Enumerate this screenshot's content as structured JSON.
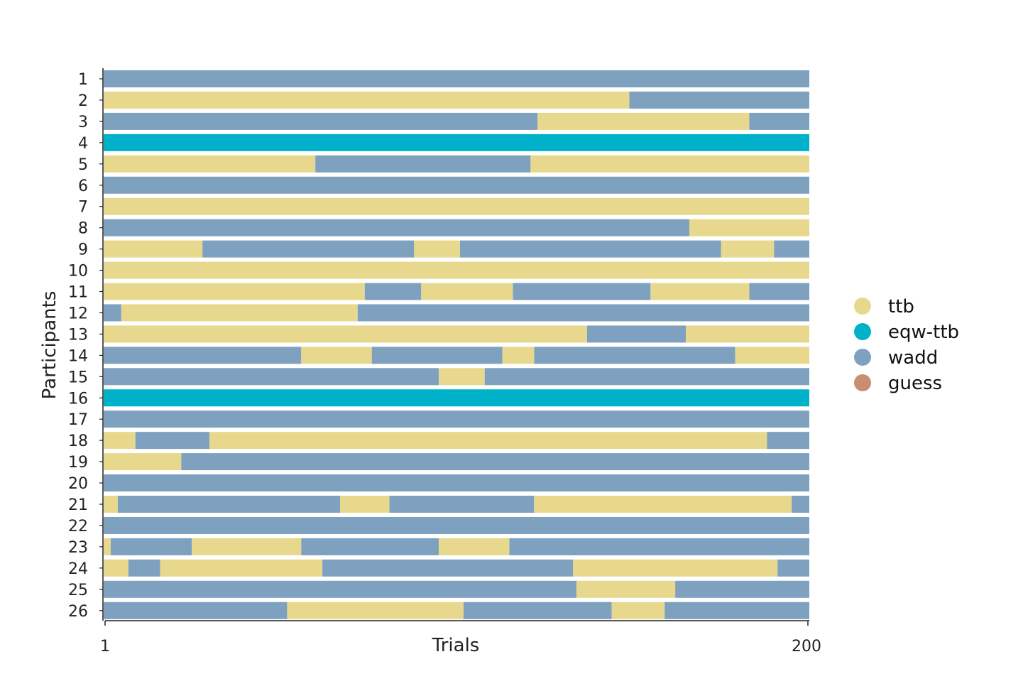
{
  "chart_data": {
    "type": "heatmap",
    "xlabel": "Trials",
    "ylabel": "Participants",
    "xticks": [
      "1",
      "200"
    ],
    "x_range": [
      1,
      200
    ],
    "legend": {
      "placement": "right",
      "entries": [
        {
          "key": "ttb",
          "label": "ttb",
          "color": "#E8D88E"
        },
        {
          "key": "eqw-ttb",
          "label": "eqw-ttb",
          "color": "#00B2C9"
        },
        {
          "key": "wadd",
          "label": "wadd",
          "color": "#7EA1C0"
        },
        {
          "key": "guess",
          "label": "guess",
          "color": "#C98D6F"
        }
      ]
    },
    "participants": [
      {
        "label": "1",
        "segments": [
          [
            "wadd",
            1,
            200
          ]
        ]
      },
      {
        "label": "2",
        "segments": [
          [
            "ttb",
            1,
            149
          ],
          [
            "wadd",
            150,
            200
          ]
        ]
      },
      {
        "label": "3",
        "segments": [
          [
            "wadd",
            1,
            123
          ],
          [
            "ttb",
            124,
            183
          ],
          [
            "wadd",
            184,
            200
          ]
        ]
      },
      {
        "label": "4",
        "segments": [
          [
            "eqw-ttb",
            1,
            200
          ]
        ]
      },
      {
        "label": "5",
        "segments": [
          [
            "ttb",
            1,
            60
          ],
          [
            "wadd",
            61,
            121
          ],
          [
            "ttb",
            122,
            200
          ]
        ]
      },
      {
        "label": "6",
        "segments": [
          [
            "wadd",
            1,
            200
          ]
        ]
      },
      {
        "label": "7",
        "segments": [
          [
            "ttb",
            1,
            200
          ]
        ]
      },
      {
        "label": "8",
        "segments": [
          [
            "wadd",
            1,
            166
          ],
          [
            "ttb",
            167,
            200
          ]
        ]
      },
      {
        "label": "9",
        "segments": [
          [
            "ttb",
            1,
            28
          ],
          [
            "wadd",
            29,
            88
          ],
          [
            "ttb",
            89,
            101
          ],
          [
            "wadd",
            102,
            175
          ],
          [
            "ttb",
            176,
            176
          ],
          [
            "ttb",
            177,
            190
          ],
          [
            "wadd",
            191,
            200
          ]
        ]
      },
      {
        "label": "10",
        "segments": [
          [
            "ttb",
            1,
            200
          ]
        ]
      },
      {
        "label": "11",
        "segments": [
          [
            "ttb",
            1,
            74
          ],
          [
            "wadd",
            75,
            90
          ],
          [
            "ttb",
            91,
            116
          ],
          [
            "wadd",
            117,
            155
          ],
          [
            "ttb",
            156,
            183
          ],
          [
            "wadd",
            184,
            200
          ]
        ]
      },
      {
        "label": "12",
        "segments": [
          [
            "wadd",
            1,
            5
          ],
          [
            "ttb",
            6,
            72
          ],
          [
            "wadd",
            73,
            200
          ]
        ]
      },
      {
        "label": "13",
        "segments": [
          [
            "ttb",
            1,
            137
          ],
          [
            "wadd",
            138,
            165
          ],
          [
            "ttb",
            166,
            200
          ]
        ]
      },
      {
        "label": "14",
        "segments": [
          [
            "wadd",
            1,
            56
          ],
          [
            "ttb",
            57,
            76
          ],
          [
            "wadd",
            77,
            113
          ],
          [
            "ttb",
            114,
            122
          ],
          [
            "wadd",
            123,
            179
          ],
          [
            "ttb",
            180,
            200
          ]
        ]
      },
      {
        "label": "15",
        "segments": [
          [
            "wadd",
            1,
            95
          ],
          [
            "ttb",
            96,
            108
          ],
          [
            "wadd",
            109,
            200
          ]
        ]
      },
      {
        "label": "16",
        "segments": [
          [
            "eqw-ttb",
            1,
            200
          ]
        ]
      },
      {
        "label": "17",
        "segments": [
          [
            "wadd",
            1,
            200
          ]
        ]
      },
      {
        "label": "18",
        "segments": [
          [
            "ttb",
            1,
            9
          ],
          [
            "wadd",
            10,
            30
          ],
          [
            "ttb",
            31,
            188
          ],
          [
            "wadd",
            189,
            200
          ]
        ]
      },
      {
        "label": "19",
        "segments": [
          [
            "ttb",
            1,
            22
          ],
          [
            "wadd",
            23,
            200
          ]
        ]
      },
      {
        "label": "20",
        "segments": [
          [
            "wadd",
            1,
            200
          ]
        ]
      },
      {
        "label": "21",
        "segments": [
          [
            "ttb",
            1,
            4
          ],
          [
            "wadd",
            5,
            67
          ],
          [
            "ttb",
            68,
            81
          ],
          [
            "wadd",
            82,
            122
          ],
          [
            "ttb",
            123,
            195
          ],
          [
            "wadd",
            196,
            200
          ]
        ]
      },
      {
        "label": "22",
        "segments": [
          [
            "wadd",
            1,
            200
          ]
        ]
      },
      {
        "label": "23",
        "segments": [
          [
            "ttb",
            1,
            2
          ],
          [
            "wadd",
            3,
            25
          ],
          [
            "ttb",
            26,
            56
          ],
          [
            "wadd",
            57,
            95
          ],
          [
            "ttb",
            96,
            115
          ],
          [
            "wadd",
            116,
            200
          ]
        ]
      },
      {
        "label": "24",
        "segments": [
          [
            "ttb",
            1,
            7
          ],
          [
            "wadd",
            8,
            16
          ],
          [
            "ttb",
            17,
            62
          ],
          [
            "wadd",
            63,
            133
          ],
          [
            "ttb",
            134,
            191
          ],
          [
            "wadd",
            192,
            200
          ]
        ]
      },
      {
        "label": "25",
        "segments": [
          [
            "wadd",
            1,
            134
          ],
          [
            "ttb",
            135,
            162
          ],
          [
            "wadd",
            163,
            200
          ]
        ]
      },
      {
        "label": "26",
        "segments": [
          [
            "wadd",
            1,
            52
          ],
          [
            "ttb",
            53,
            102
          ],
          [
            "wadd",
            103,
            144
          ],
          [
            "ttb",
            145,
            159
          ],
          [
            "wadd",
            160,
            200
          ]
        ]
      }
    ]
  }
}
